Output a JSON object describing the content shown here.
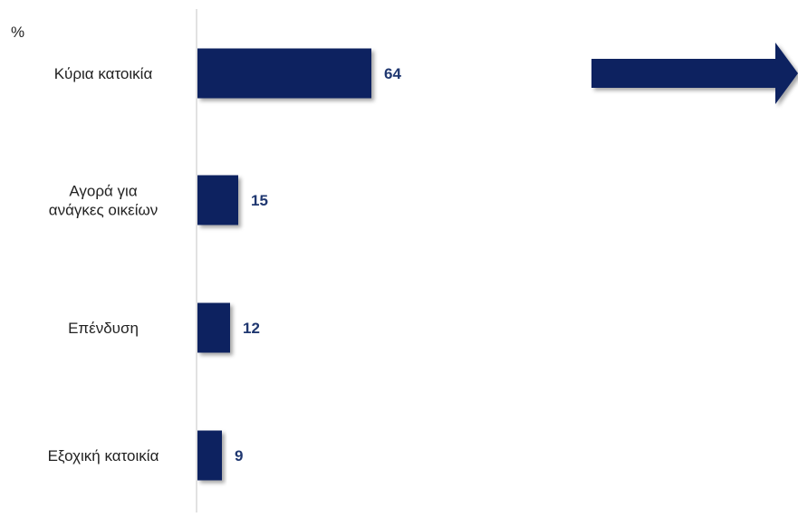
{
  "chart_data": {
    "type": "bar",
    "orientation": "horizontal",
    "unit_label": "%",
    "categories": [
      [
        "Κύρια κατοικία"
      ],
      [
        "Αγορά για",
        "ανάγκες οικείων"
      ],
      [
        "Επένδυση"
      ],
      [
        "Εξοχική κατοικία"
      ]
    ],
    "values": [
      64,
      15,
      12,
      9
    ],
    "xlim": [
      0,
      64
    ],
    "grid": false,
    "legend": "none",
    "colors": {
      "bar": "#0b2160",
      "label": "#1f3770",
      "axis": "#d9d9d9",
      "arrow": "#0b2160"
    }
  }
}
